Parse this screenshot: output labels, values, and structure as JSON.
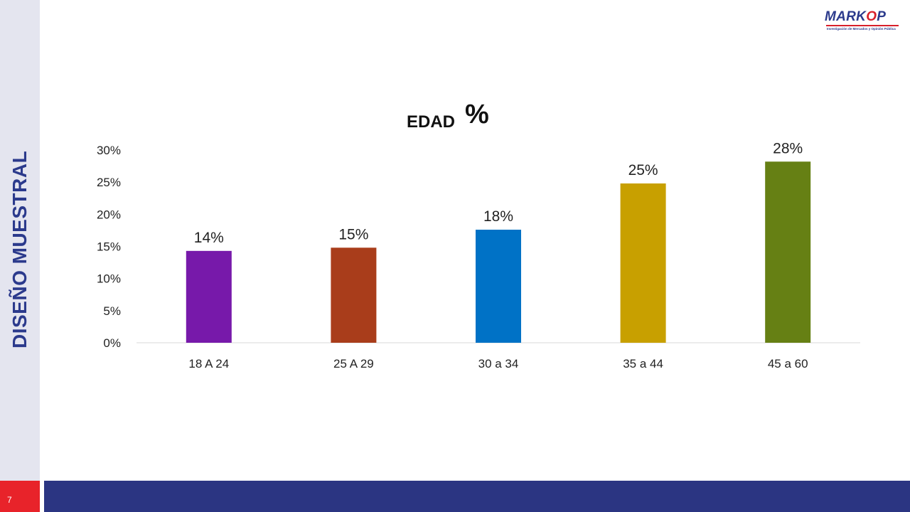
{
  "slide": {
    "side_title": "DISEÑO MUESTRAL",
    "page_number": "7",
    "logo": {
      "word_main": "MARK",
      "word_accent": "O",
      "word_end": "P",
      "tagline": "Investigación de Mercados y Opinión Pública"
    },
    "colors": {
      "side_title": "#2b3a8c",
      "footer_bar": "#2b3582",
      "page_box": "#e8232a",
      "side_strip": "#e4e5ef"
    }
  },
  "chart_data": {
    "type": "bar",
    "title": "EDAD",
    "title_suffix": "%",
    "categories": [
      "18 A 24",
      "25 A 29",
      "30 a 34",
      "35 a 44",
      "45 a 60"
    ],
    "values": [
      14.3,
      14.8,
      17.6,
      24.8,
      28.2
    ],
    "data_labels": [
      "14%",
      "15%",
      "18%",
      "25%",
      "28%"
    ],
    "colors": [
      "#7719aa",
      "#a93d1b",
      "#0072c6",
      "#c8a000",
      "#668014"
    ],
    "ylim": [
      0,
      30
    ],
    "yticks": [
      "0%",
      "5%",
      "10%",
      "15%",
      "20%",
      "25%",
      "30%"
    ],
    "ytick_values": [
      0,
      5,
      10,
      15,
      20,
      25,
      30
    ],
    "xlabel": "",
    "ylabel": "",
    "grid": false,
    "legend": "none"
  }
}
